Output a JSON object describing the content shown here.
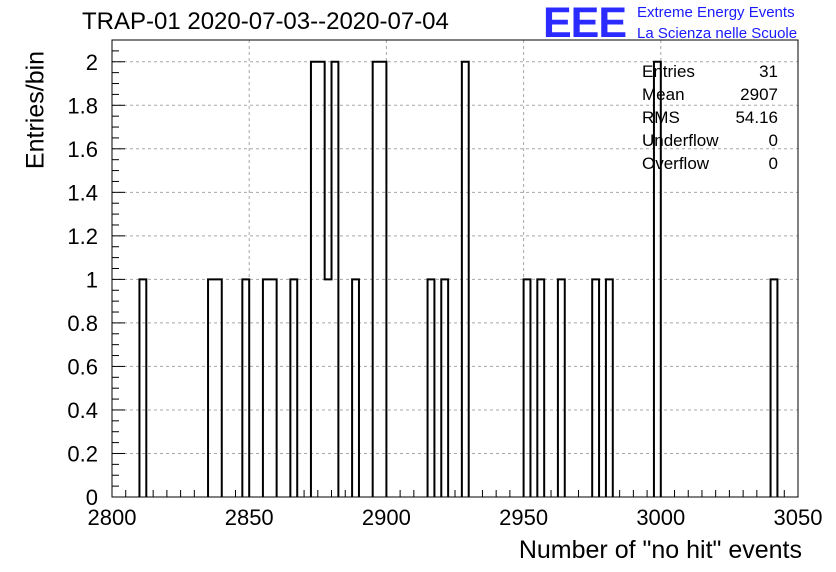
{
  "title": "TRAP-01 2020-07-03--2020-07-04",
  "logo": {
    "mark": "EEE",
    "line1": "Extreme Energy Events",
    "line2": "La Scienza nelle Scuole",
    "color": "#2b2bff"
  },
  "stats": [
    {
      "label": "Entries",
      "value": "31"
    },
    {
      "label": "Mean",
      "value": "2907"
    },
    {
      "label": "RMS",
      "value": "54.16"
    },
    {
      "label": "Underflow",
      "value": "0"
    },
    {
      "label": "Overflow",
      "value": "0"
    }
  ],
  "chart_data": {
    "type": "bar",
    "style": "step-histogram",
    "title": "TRAP-01 2020-07-03--2020-07-04",
    "xlabel": "Number of \"no hit\" events",
    "ylabel": "Entries/bin",
    "xlim": [
      2800,
      3050
    ],
    "ylim": [
      0,
      2.1
    ],
    "bin_width": 2.5,
    "grid": true,
    "x_ticks": [
      "2800",
      "2850",
      "2900",
      "2950",
      "3000",
      "3050"
    ],
    "y_ticks": [
      "0",
      "0.2",
      "0.4",
      "0.6",
      "0.8",
      "1",
      "1.2",
      "1.4",
      "1.6",
      "1.8",
      "2"
    ],
    "bins": [
      {
        "start": 2810,
        "value": 1
      },
      {
        "start": 2835,
        "value": 1
      },
      {
        "start": 2837.5,
        "value": 1
      },
      {
        "start": 2847.5,
        "value": 1
      },
      {
        "start": 2855,
        "value": 1
      },
      {
        "start": 2857.5,
        "value": 1
      },
      {
        "start": 2865,
        "value": 1
      },
      {
        "start": 2872.5,
        "value": 2
      },
      {
        "start": 2875,
        "value": 2
      },
      {
        "start": 2877.5,
        "value": 1
      },
      {
        "start": 2880,
        "value": 2
      },
      {
        "start": 2887.5,
        "value": 1
      },
      {
        "start": 2895,
        "value": 2
      },
      {
        "start": 2897.5,
        "value": 2
      },
      {
        "start": 2915,
        "value": 1
      },
      {
        "start": 2920,
        "value": 1
      },
      {
        "start": 2927.5,
        "value": 2
      },
      {
        "start": 2950,
        "value": 1
      },
      {
        "start": 2955,
        "value": 1
      },
      {
        "start": 2962.5,
        "value": 1
      },
      {
        "start": 2975,
        "value": 1
      },
      {
        "start": 2980,
        "value": 1
      },
      {
        "start": 2997.5,
        "value": 2
      },
      {
        "start": 3040,
        "value": 1
      }
    ]
  }
}
